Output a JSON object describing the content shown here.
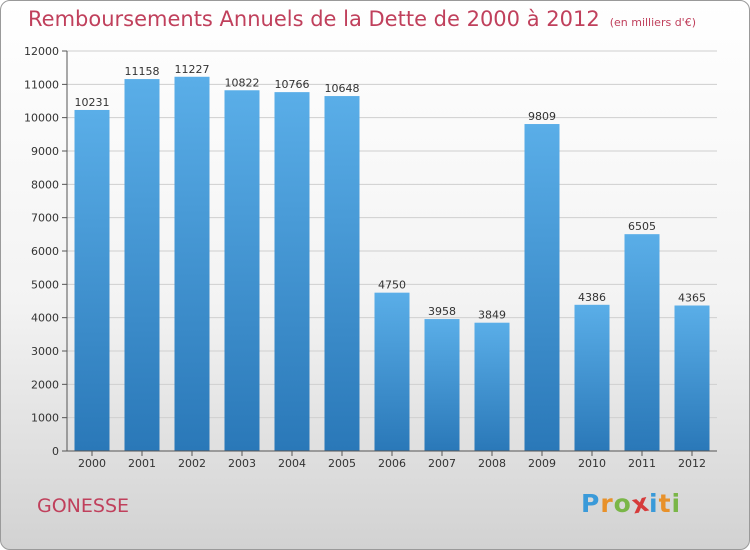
{
  "chart_data": {
    "type": "bar",
    "title": "Remboursements Annuels de la Dette de 2000 à 2012",
    "unit": "(en milliers d'€)",
    "categories": [
      "2000",
      "2001",
      "2002",
      "2003",
      "2004",
      "2005",
      "2006",
      "2007",
      "2008",
      "2009",
      "2010",
      "2011",
      "2012"
    ],
    "values": [
      10231,
      11158,
      11227,
      10822,
      10766,
      10648,
      4750,
      3958,
      3849,
      9809,
      4386,
      6505,
      4365
    ],
    "ylim": [
      0,
      12000
    ],
    "yticks": [
      0,
      1000,
      2000,
      3000,
      4000,
      5000,
      6000,
      7000,
      8000,
      9000,
      10000,
      11000,
      12000
    ],
    "grid": true,
    "bar_color_top": "#5aaee8",
    "bar_color_bottom": "#2a78b8"
  },
  "footer": {
    "city": "GONESSE",
    "logo": [
      "P",
      "r",
      "o",
      "x",
      "i",
      "t",
      "i"
    ],
    "logo_colors": [
      "#3a9ad9",
      "#e8912a",
      "#7ab648",
      "#d63a3a",
      "#3a9ad9",
      "#e8912a",
      "#7ab648"
    ]
  }
}
